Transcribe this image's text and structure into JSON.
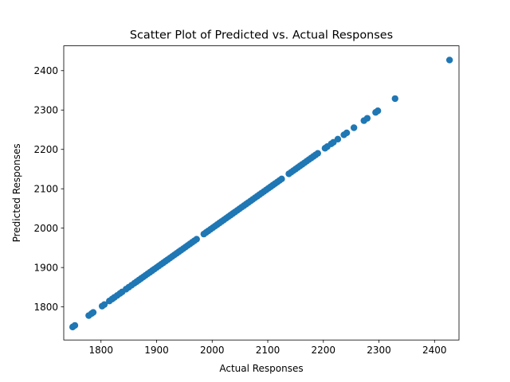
{
  "chart_data": {
    "type": "scatter",
    "title": "Scatter Plot of Predicted vs. Actual Responses",
    "xlabel": "Actual Responses",
    "ylabel": "Predicted Responses",
    "xlim": [
      1733,
      2444
    ],
    "ylim": [
      1716,
      2463
    ],
    "xticks": [
      1800,
      1900,
      2000,
      2100,
      2200,
      2300,
      2400
    ],
    "yticks": [
      1800,
      1900,
      2000,
      2100,
      2200,
      2300,
      2400
    ],
    "grid": false,
    "legend": "none",
    "marker_color": "#1f77b4",
    "series": [
      {
        "points": [
          [
            1749,
            1749
          ],
          [
            1753,
            1753
          ],
          [
            1778,
            1778
          ],
          [
            1783,
            1783
          ],
          [
            1786,
            1786
          ],
          [
            1802,
            1802
          ],
          [
            1806,
            1806
          ],
          [
            1815,
            1815
          ],
          [
            1820,
            1820
          ],
          [
            1824,
            1824
          ],
          [
            1829,
            1829
          ],
          [
            1834,
            1834
          ],
          [
            1838,
            1838
          ],
          [
            1845,
            1845
          ],
          [
            1850,
            1850
          ],
          [
            1855,
            1855
          ],
          [
            1860,
            1860
          ],
          [
            1864,
            1864
          ],
          [
            1868,
            1868
          ],
          [
            1872,
            1872
          ],
          [
            1876,
            1876
          ],
          [
            1880,
            1880
          ],
          [
            1884,
            1884
          ],
          [
            1888,
            1888
          ],
          [
            1892,
            1892
          ],
          [
            1896,
            1896
          ],
          [
            1900,
            1900
          ],
          [
            1904,
            1904
          ],
          [
            1908,
            1908
          ],
          [
            1912,
            1912
          ],
          [
            1916,
            1916
          ],
          [
            1920,
            1920
          ],
          [
            1924,
            1924
          ],
          [
            1928,
            1928
          ],
          [
            1932,
            1932
          ],
          [
            1936,
            1936
          ],
          [
            1940,
            1940
          ],
          [
            1944,
            1944
          ],
          [
            1948,
            1948
          ],
          [
            1952,
            1952
          ],
          [
            1956,
            1956
          ],
          [
            1960,
            1960
          ],
          [
            1964,
            1964
          ],
          [
            1968,
            1968
          ],
          [
            1972,
            1972
          ],
          [
            1985,
            1985
          ],
          [
            1989,
            1989
          ],
          [
            1993,
            1993
          ],
          [
            1997,
            1997
          ],
          [
            2001,
            2001
          ],
          [
            2005,
            2005
          ],
          [
            2009,
            2009
          ],
          [
            2013,
            2013
          ],
          [
            2017,
            2017
          ],
          [
            2021,
            2021
          ],
          [
            2025,
            2025
          ],
          [
            2029,
            2029
          ],
          [
            2033,
            2033
          ],
          [
            2037,
            2037
          ],
          [
            2041,
            2041
          ],
          [
            2045,
            2045
          ],
          [
            2049,
            2049
          ],
          [
            2053,
            2053
          ],
          [
            2057,
            2057
          ],
          [
            2061,
            2061
          ],
          [
            2065,
            2065
          ],
          [
            2069,
            2069
          ],
          [
            2073,
            2073
          ],
          [
            2077,
            2077
          ],
          [
            2081,
            2081
          ],
          [
            2085,
            2085
          ],
          [
            2089,
            2089
          ],
          [
            2093,
            2093
          ],
          [
            2097,
            2097
          ],
          [
            2101,
            2101
          ],
          [
            2105,
            2105
          ],
          [
            2109,
            2109
          ],
          [
            2113,
            2113
          ],
          [
            2117,
            2117
          ],
          [
            2121,
            2121
          ],
          [
            2125,
            2125
          ],
          [
            2138,
            2138
          ],
          [
            2142,
            2142
          ],
          [
            2146,
            2146
          ],
          [
            2150,
            2150
          ],
          [
            2154,
            2154
          ],
          [
            2158,
            2158
          ],
          [
            2162,
            2162
          ],
          [
            2166,
            2166
          ],
          [
            2170,
            2170
          ],
          [
            2174,
            2174
          ],
          [
            2178,
            2178
          ],
          [
            2182,
            2182
          ],
          [
            2186,
            2186
          ],
          [
            2190,
            2190
          ],
          [
            2203,
            2203
          ],
          [
            2207,
            2207
          ],
          [
            2214,
            2214
          ],
          [
            2218,
            2218
          ],
          [
            2226,
            2226
          ],
          [
            2237,
            2237
          ],
          [
            2242,
            2242
          ],
          [
            2255,
            2255
          ],
          [
            2273,
            2273
          ],
          [
            2279,
            2279
          ],
          [
            2294,
            2294
          ],
          [
            2298,
            2298
          ],
          [
            2329,
            2329
          ],
          [
            2427,
            2427
          ]
        ]
      }
    ]
  }
}
